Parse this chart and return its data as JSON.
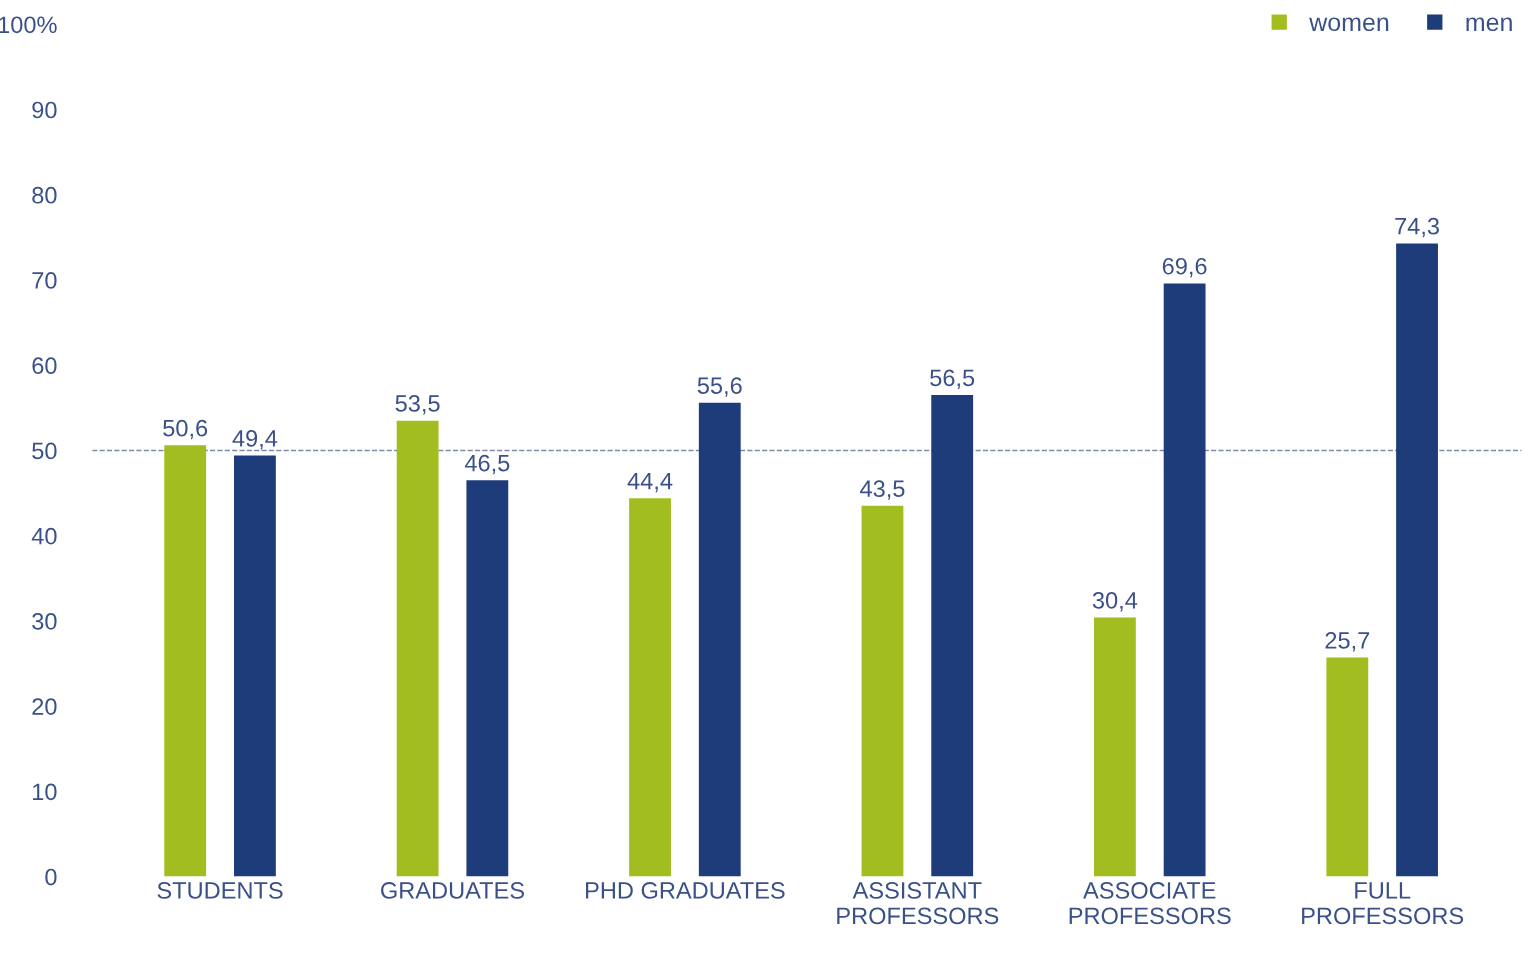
{
  "chart_data": {
    "type": "bar",
    "categories": [
      "STUDENTS",
      "GRADUATES",
      "PHD GRADUATES",
      "ASSISTANT\nPROFESSORS",
      "ASSOCIATE\nPROFESSORS",
      "FULL\nPROFESSORS"
    ],
    "series": [
      {
        "name": "women",
        "color": "#a2bd1f",
        "values": [
          50.6,
          53.5,
          44.4,
          43.5,
          30.4,
          25.7
        ],
        "value_labels": [
          "50,6",
          "53,5",
          "44,4",
          "43,5",
          "30,4",
          "25,7"
        ]
      },
      {
        "name": "men",
        "color": "#1e3c7a",
        "values": [
          49.4,
          46.5,
          55.6,
          56.5,
          69.6,
          74.3
        ],
        "value_labels": [
          "49,4",
          "46,5",
          "55,6",
          "56,5",
          "69,6",
          "74,3"
        ]
      }
    ],
    "ylim": [
      0,
      100
    ],
    "yticks": [
      0,
      10,
      20,
      30,
      40,
      50,
      60,
      70,
      80,
      90,
      {
        "value": 100,
        "label": "100%"
      }
    ],
    "ref_lines": [
      {
        "axis": "y",
        "value": 50,
        "color": "#7f8aa8",
        "line_style": "dashed"
      }
    ],
    "legend": "top right",
    "grid": false
  }
}
